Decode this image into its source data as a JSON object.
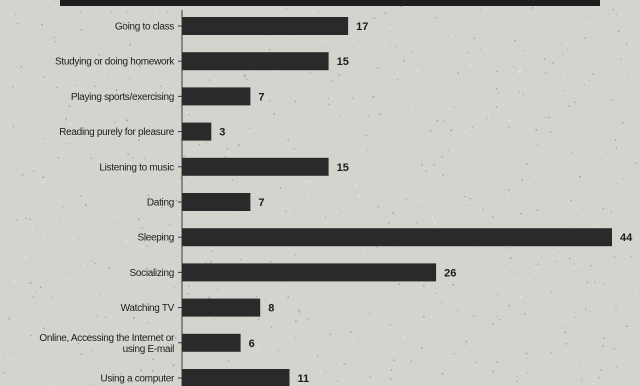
{
  "chart_data": {
    "type": "bar",
    "orientation": "horizontal",
    "title": "",
    "xlabel": "",
    "ylabel": "",
    "xlim": [
      0,
      44
    ],
    "grid": false,
    "legend": "none",
    "bar_color": "#2a2a2a",
    "categories": [
      [
        "Going to class"
      ],
      [
        "Studying or doing homework"
      ],
      [
        "Playing sports/exercising"
      ],
      [
        "Reading purely for pleasure"
      ],
      [
        "Listening to music"
      ],
      [
        "Dating"
      ],
      [
        "Sleeping"
      ],
      [
        "Socializing"
      ],
      [
        "Watching TV"
      ],
      [
        "Online, Accessing the Internet or",
        "using E-mail"
      ],
      [
        "Using a computer"
      ]
    ],
    "values": [
      17,
      15,
      7,
      3,
      15,
      7,
      44,
      26,
      8,
      6,
      11
    ]
  }
}
